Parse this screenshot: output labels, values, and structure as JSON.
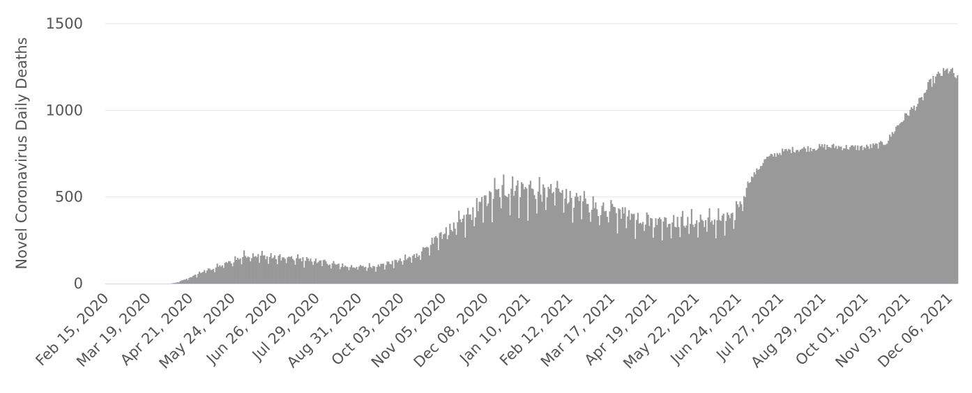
{
  "chart_data": {
    "type": "bar",
    "title": "",
    "ylabel": "Novel Coronavirus Daily Deaths",
    "xlabel": "",
    "ylim": [
      0,
      1500
    ],
    "yticks": [
      0,
      500,
      1000,
      1500
    ],
    "ytick_labels": [
      "0",
      "500",
      "1000",
      "1500"
    ],
    "xtick_labels": [
      "Feb 15, 2020",
      "Mar 19, 2020",
      "Apr 21, 2020",
      "May 24, 2020",
      "Jun 26, 2020",
      "Jul 29, 2020",
      "Aug 31, 2020",
      "Oct 03, 2020",
      "Nov 05, 2020",
      "Dec 08, 2020",
      "Jan 10, 2021",
      "Feb 12, 2021",
      "Mar 17, 2021",
      "Apr 19, 2021",
      "May 22, 2021",
      "Jun 24, 2021",
      "Jul 27, 2021",
      "Aug 29, 2021",
      "Oct 01, 2021",
      "Nov 03, 2021",
      "Dec 06, 2021"
    ],
    "start_date": "2020-02-15",
    "end_date": "2021-12-12",
    "grid": true,
    "legend": "none",
    "bar_color": "#999999",
    "baseline_color": "#ccd6eb",
    "grid_color": "#e6e6e6",
    "trend_points": [
      [
        "2020-02-15",
        0
      ],
      [
        "2020-03-19",
        0
      ],
      [
        "2020-04-05",
        0
      ],
      [
        "2020-04-10",
        5
      ],
      [
        "2020-04-21",
        35
      ],
      [
        "2020-05-01",
        70
      ],
      [
        "2020-05-12",
        95
      ],
      [
        "2020-05-24",
        130
      ],
      [
        "2020-06-04",
        165
      ],
      [
        "2020-06-15",
        160
      ],
      [
        "2020-06-26",
        150
      ],
      [
        "2020-07-07",
        145
      ],
      [
        "2020-07-18",
        140
      ],
      [
        "2020-07-29",
        130
      ],
      [
        "2020-08-09",
        115
      ],
      [
        "2020-08-20",
        100
      ],
      [
        "2020-08-31",
        95
      ],
      [
        "2020-09-11",
        100
      ],
      [
        "2020-09-22",
        115
      ],
      [
        "2020-10-03",
        135
      ],
      [
        "2020-10-14",
        160
      ],
      [
        "2020-10-25",
        220
      ],
      [
        "2020-11-05",
        290
      ],
      [
        "2020-11-16",
        340
      ],
      [
        "2020-11-27",
        400
      ],
      [
        "2020-12-08",
        480
      ],
      [
        "2020-12-19",
        530
      ],
      [
        "2020-12-30",
        555
      ],
      [
        "2021-01-10",
        540
      ],
      [
        "2021-01-21",
        520
      ],
      [
        "2021-02-01",
        535
      ],
      [
        "2021-02-12",
        500
      ],
      [
        "2021-02-23",
        450
      ],
      [
        "2021-03-06",
        430
      ],
      [
        "2021-03-17",
        420
      ],
      [
        "2021-03-28",
        410
      ],
      [
        "2021-04-08",
        375
      ],
      [
        "2021-04-19",
        360
      ],
      [
        "2021-04-30",
        360
      ],
      [
        "2021-05-11",
        355
      ],
      [
        "2021-05-22",
        355
      ],
      [
        "2021-06-02",
        365
      ],
      [
        "2021-06-13",
        370
      ],
      [
        "2021-06-20",
        375
      ],
      [
        "2021-06-24",
        460
      ],
      [
        "2021-07-01",
        580
      ],
      [
        "2021-07-08",
        650
      ],
      [
        "2021-07-15",
        720
      ],
      [
        "2021-07-27",
        760
      ],
      [
        "2021-08-07",
        775
      ],
      [
        "2021-08-18",
        780
      ],
      [
        "2021-08-29",
        790
      ],
      [
        "2021-09-09",
        790
      ],
      [
        "2021-09-20",
        785
      ],
      [
        "2021-10-01",
        785
      ],
      [
        "2021-10-12",
        800
      ],
      [
        "2021-10-18",
        820
      ],
      [
        "2021-10-25",
        900
      ],
      [
        "2021-11-03",
        980
      ],
      [
        "2021-11-14",
        1060
      ],
      [
        "2021-11-20",
        1150
      ],
      [
        "2021-11-27",
        1200
      ],
      [
        "2021-12-06",
        1235
      ],
      [
        "2021-12-12",
        1180
      ]
    ]
  }
}
